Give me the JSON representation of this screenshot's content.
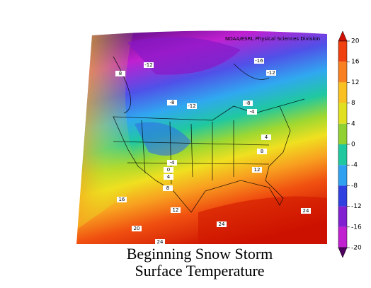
{
  "credit": "NOAA/ESRL Physical Sciences Division",
  "title": [
    "Beginning Snow Storm",
    "Surface Temperature"
  ],
  "colorbar": {
    "ticks": [
      20,
      16,
      12,
      8,
      4,
      0,
      -4,
      -8,
      -12,
      -16,
      -20
    ],
    "colors": [
      "#d01000",
      "#f04010",
      "#f88020",
      "#f8c020",
      "#e0e020",
      "#90d030",
      "#20c8a0",
      "#30a0f0",
      "#3040e0",
      "#8020d0",
      "#c020d0",
      "#500060"
    ]
  },
  "contour_labels": [
    -12,
    -16,
    -12,
    8,
    -8,
    -12,
    -8,
    -4,
    4,
    8,
    12,
    -4,
    0,
    4,
    8,
    12,
    16,
    20,
    24,
    24,
    24
  ]
}
